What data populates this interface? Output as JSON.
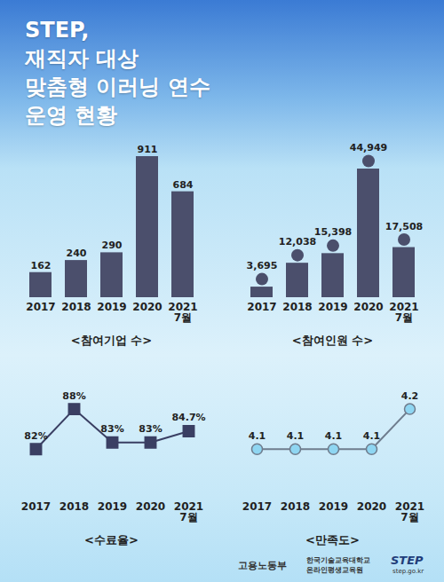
{
  "title": [
    "STEP,",
    "재직자 대상",
    "맞춤형 이러닝 연수",
    "운영 현황"
  ],
  "chart_data": [
    {
      "type": "bar",
      "title": "<참여기업 수>",
      "categories": [
        "2017",
        "2018",
        "2019",
        "2020",
        "2021 7월"
      ],
      "values": [
        162,
        240,
        290,
        911,
        684
      ],
      "color": "#4b4f6c",
      "data_labels": true,
      "tick_labels": "x"
    },
    {
      "type": "bar",
      "title": "<참여인원 수>",
      "categories": [
        "2017",
        "2018",
        "2019",
        "2020",
        "2021 7월"
      ],
      "values": [
        3695,
        12038,
        15398,
        44949,
        17508
      ],
      "value_labels": [
        "3,695",
        "12,038",
        "15,398",
        "44,949",
        "17,508"
      ],
      "color": "#4b4f6c",
      "marker": "circle",
      "data_labels": true,
      "tick_labels": "x"
    },
    {
      "type": "line",
      "title": "<수료율>",
      "categories": [
        "2017",
        "2018",
        "2019",
        "2020",
        "2021 7월"
      ],
      "values": [
        82,
        88,
        83,
        83,
        84.7
      ],
      "value_labels": [
        "82%",
        "88%",
        "83%",
        "83%",
        "84.7%"
      ],
      "color": "#3a3f63",
      "marker": "square",
      "data_labels": true,
      "tick_labels": "x"
    },
    {
      "type": "line",
      "title": "<만족도>",
      "categories": [
        "2017",
        "2018",
        "2019",
        "2020",
        "2021 7월"
      ],
      "values": [
        4.1,
        4.1,
        4.1,
        4.1,
        4.2
      ],
      "color": "#6f7d8e",
      "marker": "circle",
      "data_labels": true,
      "tick_labels": "x"
    }
  ],
  "footer": [
    "고용노동부",
    "한국기술교육대학교",
    "온라인평생교육원",
    "STEP",
    "step.go.kr"
  ]
}
